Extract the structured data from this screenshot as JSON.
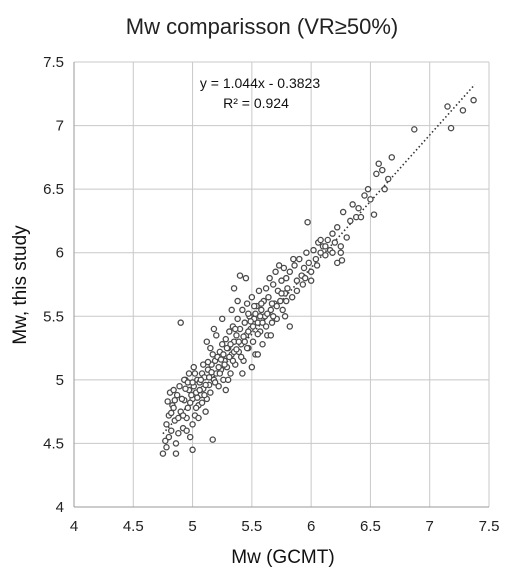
{
  "chart_data": {
    "type": "scatter",
    "title": "Mw comparisson (VR≥50%)",
    "xlabel": "Mw (GCMT)",
    "ylabel": "Mw, this study",
    "xlim": [
      4,
      7.5
    ],
    "ylim": [
      4,
      7.5
    ],
    "xticks": [
      "4",
      "4.5",
      "5",
      "5.5",
      "6",
      "6.5",
      "7",
      "7.5"
    ],
    "yticks": [
      "4",
      "4.5",
      "5",
      "5.5",
      "6",
      "6.5",
      "7",
      "7.5"
    ],
    "grid": true,
    "trendline": {
      "slope": 1.044,
      "intercept": -0.3823,
      "x_range": [
        4.75,
        7.38
      ],
      "style": "dotted"
    },
    "annotations": {
      "equation": "y = 1.044x - 0.3823",
      "r2": "R² = 0.924"
    },
    "series": [
      {
        "marker": "open-circle",
        "points": [
          [
            4.75,
            4.42
          ],
          [
            4.78,
            4.47
          ],
          [
            4.8,
            4.55
          ],
          [
            4.82,
            4.6
          ],
          [
            4.78,
            4.65
          ],
          [
            4.8,
            4.72
          ],
          [
            4.83,
            4.8
          ],
          [
            4.85,
            4.68
          ],
          [
            4.86,
            4.5
          ],
          [
            4.88,
            4.58
          ],
          [
            4.87,
            4.88
          ],
          [
            4.9,
            4.75
          ],
          [
            4.92,
            4.62
          ],
          [
            4.93,
            4.84
          ],
          [
            4.95,
            4.7
          ],
          [
            4.96,
            4.78
          ],
          [
            4.97,
            4.92
          ],
          [
            4.98,
            4.55
          ],
          [
            5.0,
            4.65
          ],
          [
            5.0,
            4.85
          ],
          [
            5.01,
            4.95
          ],
          [
            5.02,
            4.72
          ],
          [
            5.03,
            4.9
          ],
          [
            5.04,
            5.0
          ],
          [
            5.05,
            4.8
          ],
          [
            5.06,
            4.98
          ],
          [
            5.07,
            4.88
          ],
          [
            5.08,
            5.05
          ],
          [
            5.09,
            4.93
          ],
          [
            5.1,
            5.02
          ],
          [
            5.11,
            4.75
          ],
          [
            5.12,
            4.85
          ],
          [
            5.13,
            5.08
          ],
          [
            5.14,
            4.96
          ],
          [
            5.15,
            4.9
          ],
          [
            5.16,
            5.12
          ],
          [
            5.17,
            4.53
          ],
          [
            5.18,
            5.0
          ],
          [
            5.19,
            5.15
          ],
          [
            5.2,
            5.05
          ],
          [
            4.79,
            4.83
          ],
          [
            4.81,
            4.9
          ],
          [
            4.84,
            4.78
          ],
          [
            4.89,
            4.95
          ],
          [
            4.91,
            4.85
          ],
          [
            4.94,
            5.0
          ],
          [
            4.99,
            4.88
          ],
          [
            5.02,
            5.05
          ],
          [
            4.9,
            5.45
          ],
          [
            5.0,
            4.45
          ],
          [
            4.95,
            4.6
          ],
          [
            5.05,
            4.7
          ],
          [
            4.93,
            5.0
          ],
          [
            4.97,
            5.05
          ],
          [
            5.01,
            5.1
          ],
          [
            5.08,
            4.82
          ],
          [
            5.21,
            5.18
          ],
          [
            5.22,
            4.95
          ],
          [
            5.23,
            5.22
          ],
          [
            5.24,
            5.08
          ],
          [
            5.25,
            5.28
          ],
          [
            5.26,
            5.0
          ],
          [
            5.27,
            5.15
          ],
          [
            5.28,
            5.32
          ],
          [
            5.29,
            5.1
          ],
          [
            5.3,
            5.25
          ],
          [
            5.31,
            5.38
          ],
          [
            5.32,
            5.05
          ],
          [
            5.33,
            5.2
          ],
          [
            5.34,
            5.42
          ],
          [
            5.35,
            5.3
          ],
          [
            5.36,
            5.12
          ],
          [
            5.37,
            5.35
          ],
          [
            5.38,
            5.48
          ],
          [
            5.39,
            5.22
          ],
          [
            5.4,
            5.4
          ],
          [
            5.41,
            5.28
          ],
          [
            5.42,
            5.55
          ],
          [
            5.43,
            5.15
          ],
          [
            5.44,
            5.45
          ],
          [
            5.45,
            5.35
          ],
          [
            5.46,
            5.6
          ],
          [
            5.47,
            5.25
          ],
          [
            5.48,
            5.5
          ],
          [
            5.49,
            5.4
          ],
          [
            5.5,
            5.65
          ],
          [
            5.51,
            5.3
          ],
          [
            5.52,
            5.48
          ],
          [
            5.53,
            5.2
          ],
          [
            5.54,
            5.58
          ],
          [
            5.55,
            5.45
          ],
          [
            5.56,
            5.7
          ],
          [
            5.57,
            5.38
          ],
          [
            5.58,
            5.55
          ],
          [
            5.59,
            5.28
          ],
          [
            5.6,
            5.62
          ],
          [
            5.35,
            5.72
          ],
          [
            5.4,
            5.82
          ],
          [
            5.45,
            5.8
          ],
          [
            5.38,
            5.62
          ],
          [
            5.3,
            5.0
          ],
          [
            5.28,
            4.92
          ],
          [
            5.33,
            5.55
          ],
          [
            5.42,
            5.05
          ],
          [
            5.5,
            5.1
          ],
          [
            5.55,
            5.2
          ],
          [
            5.25,
            5.48
          ],
          [
            5.2,
            5.35
          ],
          [
            5.15,
            5.25
          ],
          [
            5.12,
            5.3
          ],
          [
            5.18,
            5.4
          ],
          [
            5.46,
            5.25
          ],
          [
            5.61,
            5.5
          ],
          [
            5.62,
            5.72
          ],
          [
            5.63,
            5.35
          ],
          [
            5.64,
            5.65
          ],
          [
            5.65,
            5.8
          ],
          [
            5.66,
            5.55
          ],
          [
            5.67,
            5.45
          ],
          [
            5.68,
            5.75
          ],
          [
            5.69,
            5.6
          ],
          [
            5.7,
            5.85
          ],
          [
            5.71,
            5.48
          ],
          [
            5.72,
            5.7
          ],
          [
            5.73,
            5.9
          ],
          [
            5.74,
            5.62
          ],
          [
            5.75,
            5.78
          ],
          [
            5.76,
            5.55
          ],
          [
            5.77,
            5.88
          ],
          [
            5.78,
            5.68
          ],
          [
            5.79,
            5.8
          ],
          [
            5.8,
            5.72
          ],
          [
            5.82,
            5.85
          ],
          [
            5.84,
            5.65
          ],
          [
            5.86,
            5.9
          ],
          [
            5.88,
            5.78
          ],
          [
            5.9,
            5.95
          ],
          [
            5.92,
            5.82
          ],
          [
            5.94,
            5.88
          ],
          [
            5.96,
            6.0
          ],
          [
            5.98,
            5.92
          ],
          [
            6.0,
            5.85
          ],
          [
            6.02,
            6.02
          ],
          [
            6.04,
            5.95
          ],
          [
            6.06,
            6.08
          ],
          [
            6.08,
            6.0
          ],
          [
            6.1,
            6.05
          ],
          [
            6.12,
            5.98
          ],
          [
            6.14,
            6.1
          ],
          [
            6.16,
            6.02
          ],
          [
            6.18,
            6.15
          ],
          [
            6.2,
            6.08
          ],
          [
            5.97,
            6.24
          ],
          [
            5.82,
            5.42
          ],
          [
            5.95,
            5.8
          ],
          [
            6.0,
            5.78
          ],
          [
            6.05,
            5.9
          ],
          [
            5.85,
            5.95
          ],
          [
            5.78,
            5.5
          ],
          [
            5.66,
            5.35
          ],
          [
            6.22,
            6.2
          ],
          [
            6.25,
            6.05
          ],
          [
            6.26,
            5.94
          ],
          [
            6.27,
            6.32
          ],
          [
            6.3,
            6.12
          ],
          [
            6.33,
            6.25
          ],
          [
            6.35,
            6.38
          ],
          [
            6.38,
            6.28
          ],
          [
            6.4,
            6.35
          ],
          [
            6.42,
            6.28
          ],
          [
            6.45,
            6.45
          ],
          [
            6.48,
            6.5
          ],
          [
            6.5,
            6.42
          ],
          [
            6.53,
            6.3
          ],
          [
            6.55,
            6.62
          ],
          [
            6.57,
            6.7
          ],
          [
            6.6,
            6.65
          ],
          [
            6.62,
            6.5
          ],
          [
            6.65,
            6.58
          ],
          [
            6.68,
            6.75
          ],
          [
            6.87,
            6.97
          ],
          [
            7.15,
            7.15
          ],
          [
            7.18,
            6.98
          ],
          [
            7.28,
            7.12
          ],
          [
            7.37,
            7.2
          ],
          [
            6.25,
            6.0
          ],
          [
            6.22,
            5.92
          ],
          [
            6.18,
            6.0
          ],
          [
            6.12,
            6.05
          ],
          [
            6.08,
            6.1
          ],
          [
            5.93,
            5.75
          ],
          [
            5.88,
            5.7
          ],
          [
            4.77,
            4.52
          ],
          [
            4.86,
            4.42
          ],
          [
            4.92,
            4.72
          ],
          [
            4.98,
            4.82
          ],
          [
            5.03,
            4.78
          ],
          [
            5.06,
            4.92
          ],
          [
            5.1,
            4.88
          ],
          [
            5.14,
            5.02
          ],
          [
            5.19,
            4.98
          ],
          [
            5.23,
            5.05
          ],
          [
            5.27,
            5.12
          ],
          [
            5.31,
            5.18
          ],
          [
            5.35,
            5.22
          ],
          [
            5.39,
            5.3
          ],
          [
            5.43,
            5.34
          ],
          [
            5.47,
            5.38
          ],
          [
            5.51,
            5.42
          ],
          [
            5.55,
            5.36
          ],
          [
            5.59,
            5.45
          ],
          [
            5.63,
            5.52
          ],
          [
            5.67,
            5.6
          ],
          [
            5.71,
            5.58
          ],
          [
            5.75,
            5.68
          ],
          [
            5.79,
            5.62
          ],
          [
            4.84,
            4.92
          ],
          [
            4.88,
            4.7
          ],
          [
            4.96,
            4.98
          ],
          [
            5.04,
            4.86
          ],
          [
            5.09,
            5.12
          ],
          [
            5.16,
            5.06
          ],
          [
            5.22,
            5.1
          ],
          [
            5.26,
            5.2
          ],
          [
            5.32,
            5.28
          ],
          [
            5.36,
            5.4
          ],
          [
            5.41,
            5.18
          ],
          [
            5.47,
            5.52
          ],
          [
            5.52,
            5.58
          ],
          [
            5.57,
            5.5
          ],
          [
            5.62,
            5.42
          ],
          [
            5.68,
            5.5
          ],
          [
            4.82,
            4.74
          ],
          [
            4.85,
            4.84
          ],
          [
            4.94,
            4.93
          ],
          [
            5.0,
            4.98
          ],
          [
            5.07,
            5.0
          ],
          [
            5.11,
            4.96
          ],
          [
            5.13,
            5.14
          ],
          [
            5.17,
            5.2
          ],
          [
            5.24,
            5.16
          ],
          [
            5.29,
            5.25
          ],
          [
            5.34,
            5.15
          ],
          [
            5.37,
            5.24
          ],
          [
            5.44,
            5.3
          ],
          [
            5.49,
            5.46
          ],
          [
            5.53,
            5.52
          ],
          [
            5.58,
            5.6
          ]
        ]
      }
    ]
  }
}
